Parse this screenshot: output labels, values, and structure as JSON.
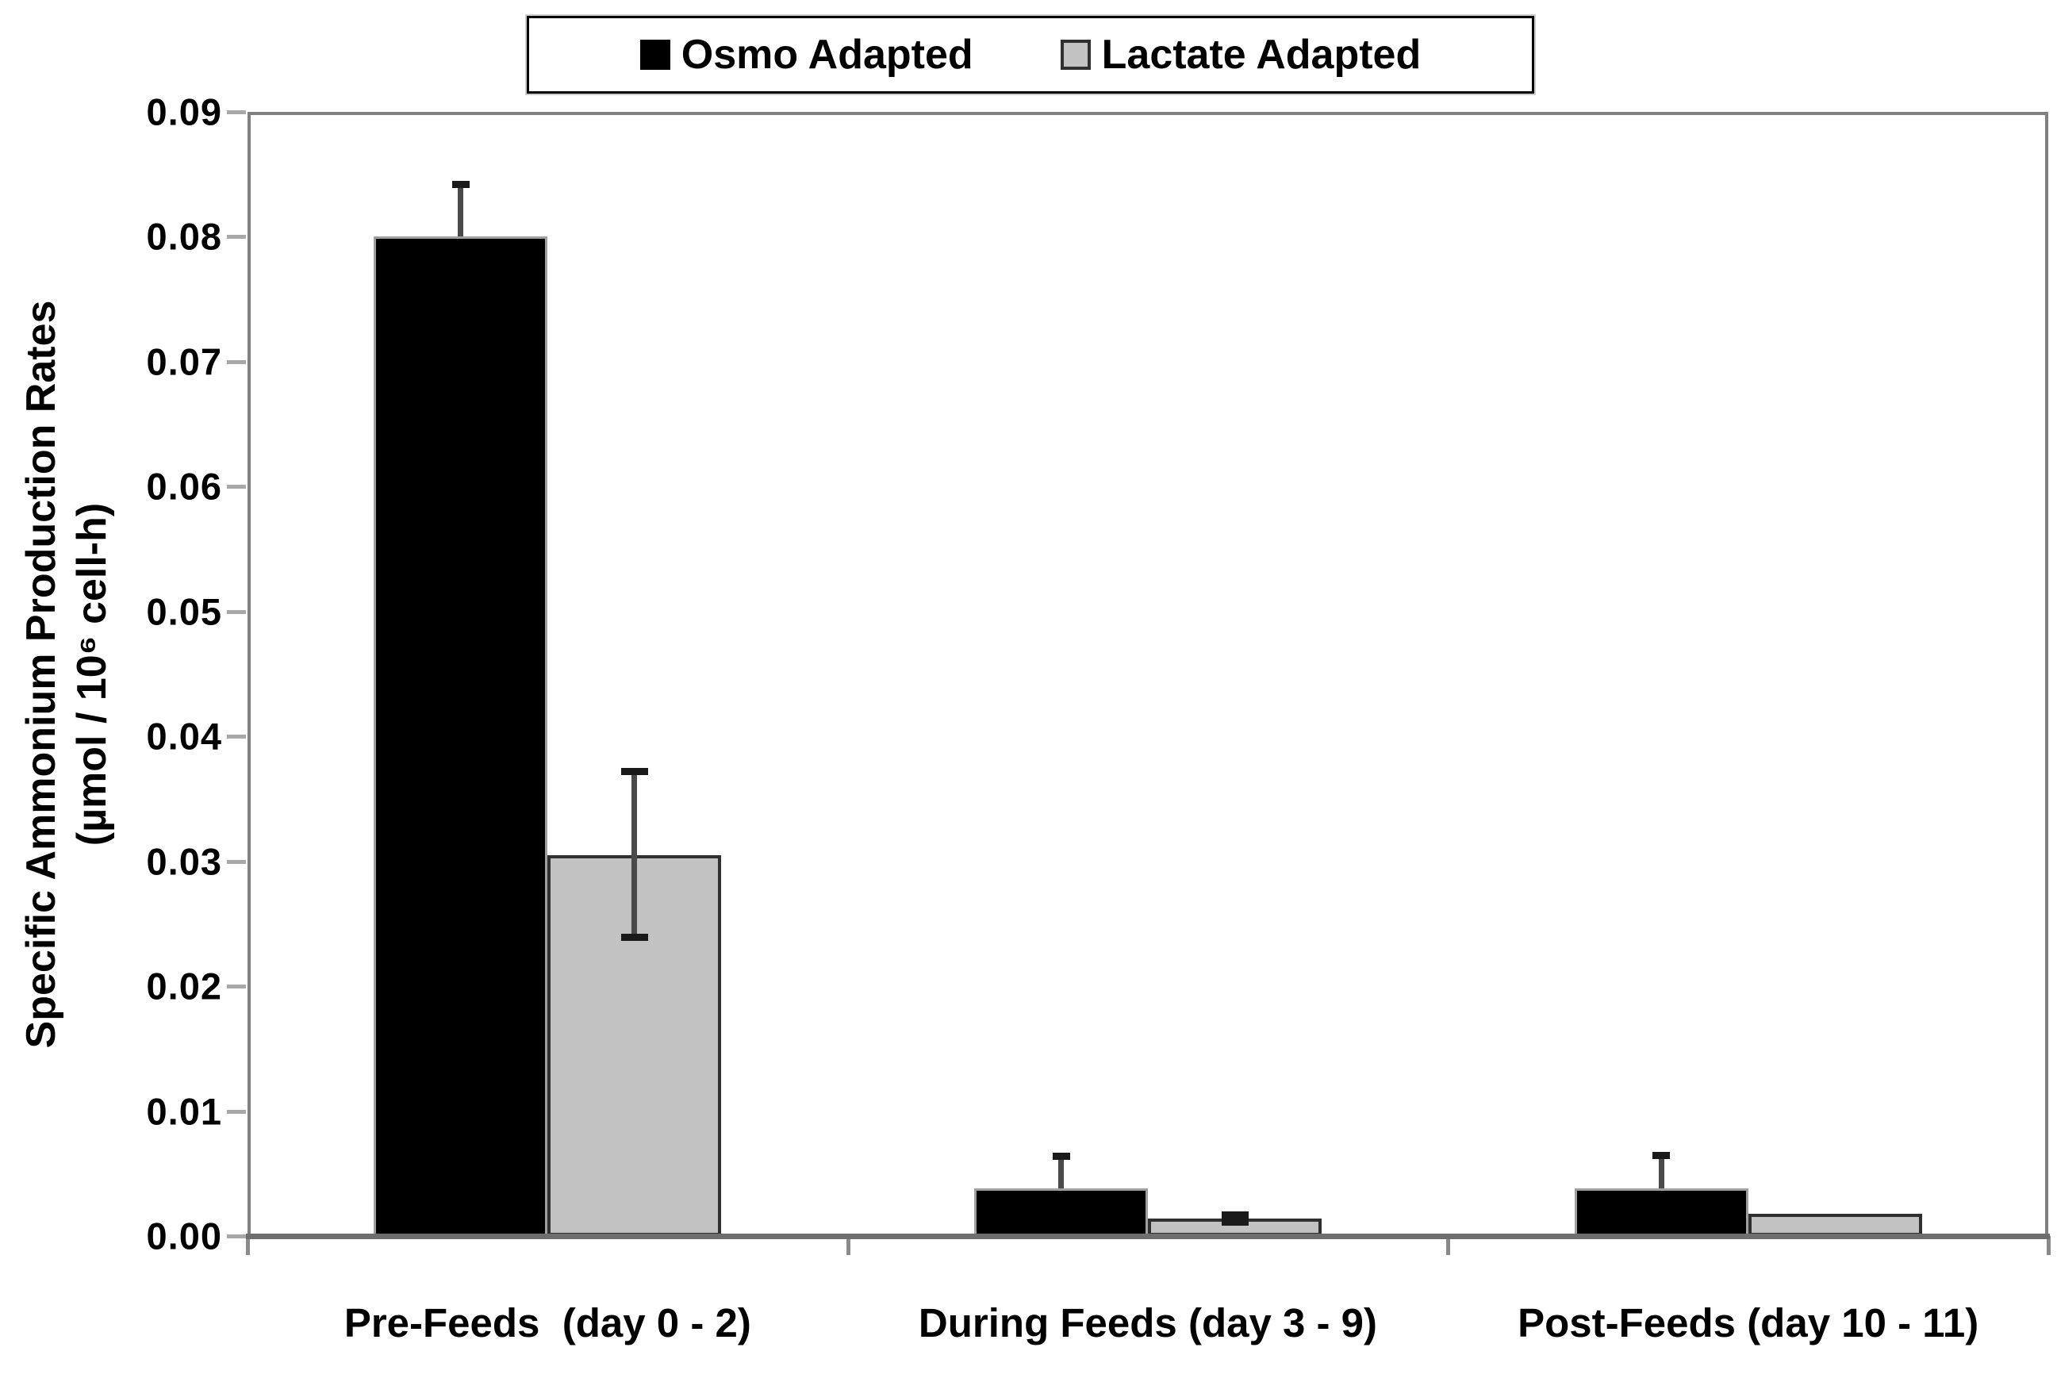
{
  "chart_data": {
    "type": "bar",
    "title": "",
    "categories": [
      "Pre-Feeds  (day 0 - 2)",
      "During Feeds (day 3 - 9)",
      "Post-Feeds (day 10 - 11)"
    ],
    "series": [
      {
        "name": "Osmo Adapted",
        "color": "#000000",
        "border_color": "#a0a0a0",
        "values": [
          0.08,
          0.0038,
          0.0038
        ],
        "err_up": [
          0.0042,
          0.0026,
          0.0027
        ],
        "err_down": [
          0,
          0,
          0
        ],
        "err_cap_width": 22
      },
      {
        "name": "Lactate Adapted",
        "color": "#c2c2c2",
        "border_color": "#303030",
        "values": [
          0.0305,
          0.0014,
          0.0018
        ],
        "err_up": [
          0.0067,
          0.0003,
          0
        ],
        "err_down": [
          0.0066,
          0.0003,
          0
        ],
        "err_cap_width": 34
      }
    ],
    "ylabel_line1": "Specific Ammonium Production Rates",
    "ylabel_line2": "(µmol / 10⁶ cell-h)",
    "xlabel": "",
    "ylim": [
      0,
      0.09
    ],
    "ytick_step": 0.01,
    "y_tick_labels": [
      "0.00",
      "0.01",
      "0.02",
      "0.03",
      "0.04",
      "0.05",
      "0.06",
      "0.07",
      "0.08",
      "0.09"
    ],
    "grid": "off",
    "legend_position": "top",
    "error_bar_color": "#4a4a4a",
    "axis_color": "#808080"
  }
}
